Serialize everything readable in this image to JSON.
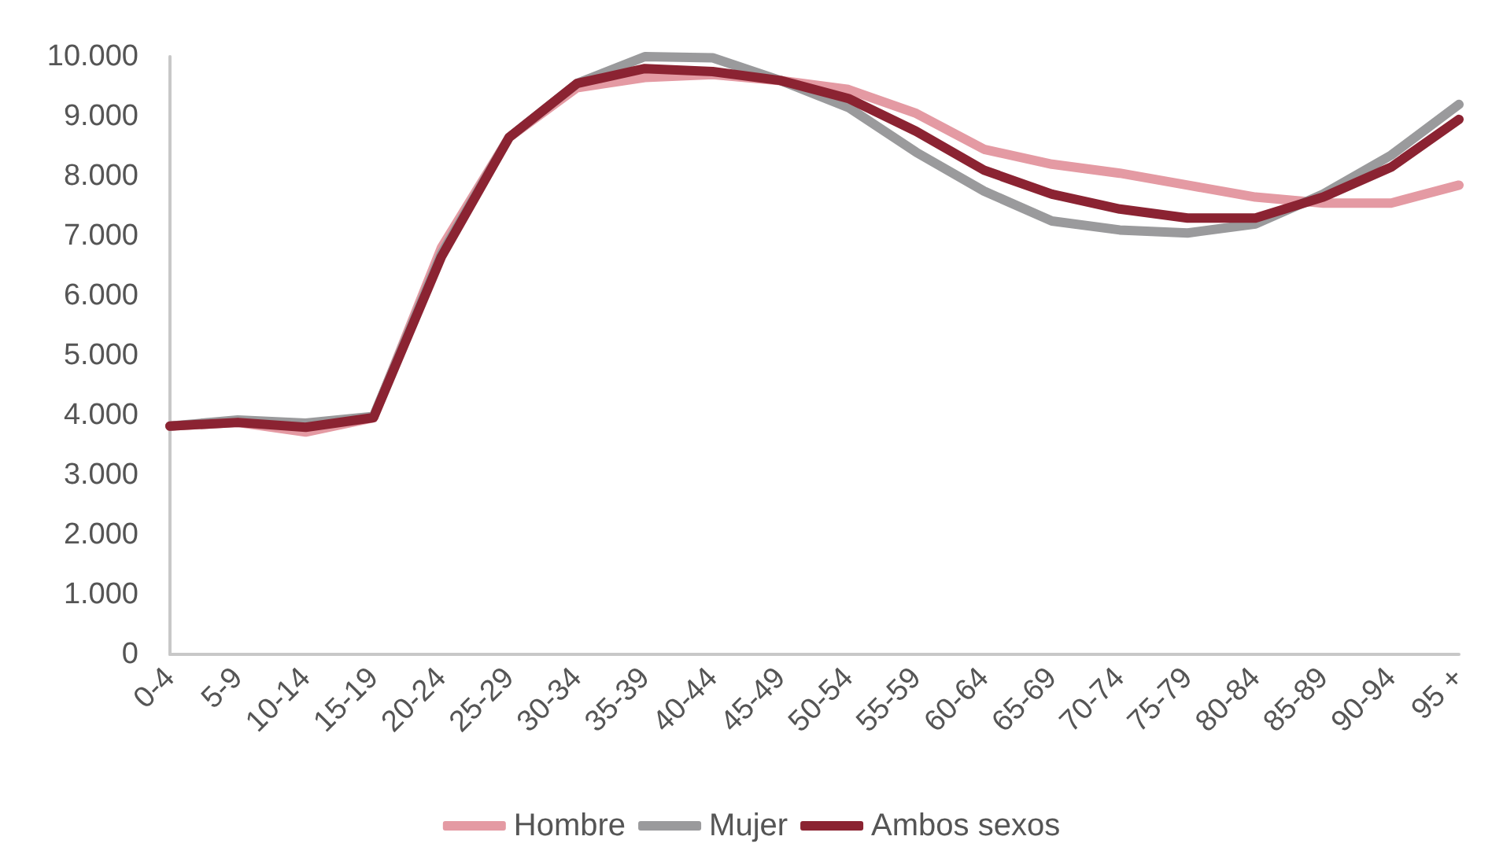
{
  "chart_data": {
    "type": "line",
    "categories": [
      "0-4",
      "5-9",
      "10-14",
      "15-19",
      "20-24",
      "25-29",
      "30-34",
      "35-39",
      "40-44",
      "45-49",
      "50-54",
      "55-59",
      "60-64",
      "65-69",
      "70-74",
      "75-79",
      "80-84",
      "85-89",
      "90-94",
      "95 +"
    ],
    "series": [
      {
        "name": "Hombre",
        "color": "#e49aa3",
        "values": [
          3820,
          3880,
          3720,
          3960,
          6800,
          8650,
          9480,
          9650,
          9700,
          9600,
          9450,
          9050,
          8450,
          8200,
          8050,
          7850,
          7650,
          7550,
          7550,
          7850
        ]
      },
      {
        "name": "Mujer",
        "color": "#9a9a9c",
        "values": [
          3820,
          3920,
          3870,
          3980,
          6700,
          8650,
          9550,
          10000,
          9980,
          9600,
          9150,
          8400,
          7750,
          7250,
          7100,
          7050,
          7200,
          7700,
          8350,
          9200
        ]
      },
      {
        "name": "Ambos sexos",
        "color": "#8b2332",
        "values": [
          3820,
          3880,
          3800,
          3960,
          6650,
          8650,
          9550,
          9800,
          9750,
          9600,
          9300,
          8750,
          8100,
          7700,
          7450,
          7300,
          7300,
          7650,
          8150,
          8950
        ]
      }
    ],
    "ylim": [
      0,
      10000
    ],
    "yticks": [
      {
        "value": 0,
        "label": "0"
      },
      {
        "value": 1000,
        "label": "1.000"
      },
      {
        "value": 2000,
        "label": "2.000"
      },
      {
        "value": 3000,
        "label": "3.000"
      },
      {
        "value": 4000,
        "label": "4.000"
      },
      {
        "value": 5000,
        "label": "5.000"
      },
      {
        "value": 6000,
        "label": "6.000"
      },
      {
        "value": 7000,
        "label": "7.000"
      },
      {
        "value": 8000,
        "label": "8.000"
      },
      {
        "value": 9000,
        "label": "9.000"
      },
      {
        "value": 10000,
        "label": "10.000"
      }
    ],
    "grid": false,
    "legend": "bottom",
    "marker": "none",
    "line_style": "solid"
  }
}
